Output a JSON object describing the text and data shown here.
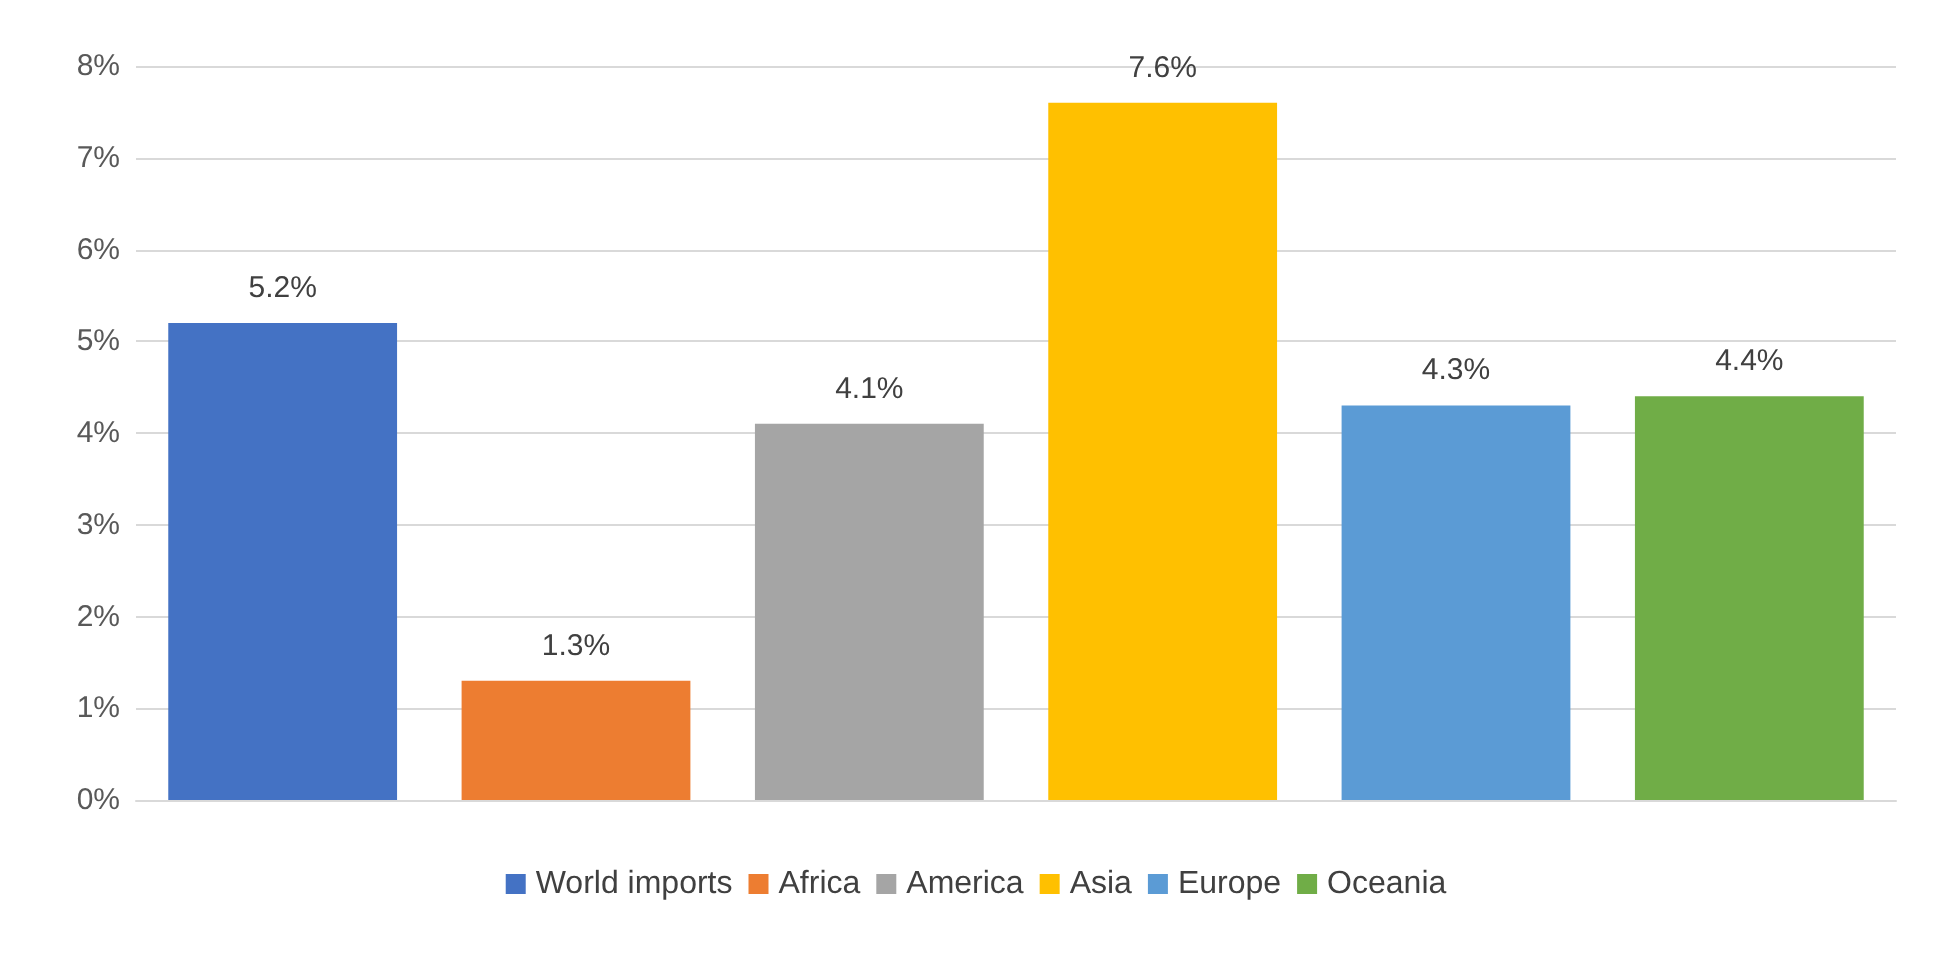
{
  "chart_data": {
    "type": "bar",
    "categories": [
      null,
      null,
      null,
      null,
      null,
      null
    ],
    "stacked": true,
    "series": [
      {
        "name": "World imports",
        "color": "#4472c4",
        "values": [
          5.2,
          null,
          null,
          null,
          null,
          null
        ]
      },
      {
        "name": "Africa",
        "color": "#ed7d31",
        "values": [
          null,
          1.3,
          null,
          null,
          null,
          null
        ]
      },
      {
        "name": "America",
        "color": "#a5a5a5",
        "values": [
          null,
          null,
          4.1,
          null,
          null,
          null
        ]
      },
      {
        "name": "Asia",
        "color": "#ffc000",
        "values": [
          null,
          null,
          null,
          7.6,
          null,
          null
        ]
      },
      {
        "name": "Europe",
        "color": "#5b9bd5",
        "values": [
          null,
          null,
          null,
          null,
          4.3,
          null
        ]
      },
      {
        "name": "Oceania",
        "color": "#70ad47",
        "values": [
          null,
          null,
          null,
          null,
          null,
          4.4
        ]
      }
    ],
    "value_labels": [
      "5.2%",
      "1.3%",
      "4.1%",
      "7.6%",
      "4.3%",
      "4.4%"
    ],
    "ylim": [
      0,
      8
    ],
    "yticks": [
      {
        "value": 0,
        "label": "0%"
      },
      {
        "value": 1,
        "label": "1%"
      },
      {
        "value": 2,
        "label": "2%"
      },
      {
        "value": 3,
        "label": "3%"
      },
      {
        "value": 4,
        "label": "4%"
      },
      {
        "value": 5,
        "label": "5%"
      },
      {
        "value": 6,
        "label": "6%"
      },
      {
        "value": 7,
        "label": "7%"
      },
      {
        "value": 8,
        "label": "8%"
      }
    ],
    "grid": "y",
    "legend": "bottom"
  }
}
